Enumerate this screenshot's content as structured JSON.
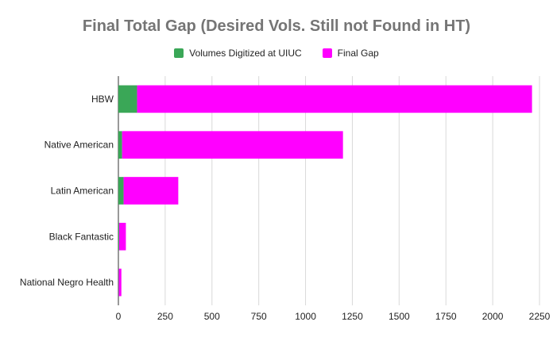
{
  "chart_data": {
    "type": "bar",
    "orientation": "horizontal",
    "stacked": true,
    "title": "Final Total Gap (Desired Vols. Still not Found in HT)",
    "categories": [
      "HBW",
      "Native American",
      "Latin American",
      "Black Fantastic",
      "National Negro Health"
    ],
    "series": [
      {
        "name": "Volumes Digitized at UIUC",
        "color": "#3aa757",
        "values": [
          100,
          20,
          28,
          4,
          2
        ]
      },
      {
        "name": "Final Gap",
        "color": "#ff00ff",
        "values": [
          2110,
          1180,
          292,
          36,
          14
        ]
      }
    ],
    "xlim": [
      0,
      2250
    ],
    "xticks": [
      "0",
      "250",
      "500",
      "750",
      "1000",
      "1250",
      "1500",
      "1750",
      "2000",
      "2250"
    ],
    "grid": true,
    "legend_position": "top"
  }
}
